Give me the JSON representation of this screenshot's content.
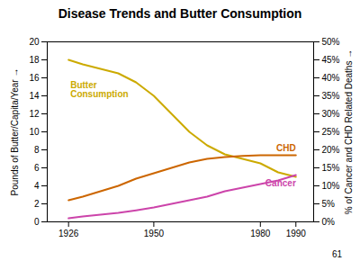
{
  "chart_data": {
    "type": "line",
    "title": "Disease Trends and Butter Consumption",
    "x": [
      1926,
      1930,
      1935,
      1940,
      1945,
      1950,
      1955,
      1960,
      1965,
      1970,
      1975,
      1980,
      1985,
      1990
    ],
    "xlim": [
      1920,
      1995
    ],
    "xticks": [
      1926,
      1950,
      1980,
      1990
    ],
    "ylabel": "Pounds of Butter/Capita/Year",
    "ylim": [
      0,
      20
    ],
    "yticks": [
      0,
      2,
      4,
      6,
      8,
      10,
      12,
      14,
      16,
      18,
      20
    ],
    "y2label": "% of Cancer and CHD Related Deaths",
    "y2lim": [
      0,
      50
    ],
    "y2ticks": [
      {
        "value": 0,
        "label": "0%"
      },
      {
        "value": 5,
        "label": "5%"
      },
      {
        "value": 10,
        "label": "10%"
      },
      {
        "value": 15,
        "label": "15%"
      },
      {
        "value": 20,
        "label": "20%"
      },
      {
        "value": 25,
        "label": "25%"
      },
      {
        "value": 30,
        "label": "30%"
      },
      {
        "value": 35,
        "label": "35%"
      },
      {
        "value": 40,
        "label": "40%"
      },
      {
        "value": 45,
        "label": "45%"
      },
      {
        "value": 50,
        "label": "50%"
      }
    ],
    "grid": false,
    "series": [
      {
        "name": "Butter\nConsumption",
        "color": "#ccaa00",
        "values": [
          18.0,
          17.5,
          17.0,
          16.5,
          15.5,
          14.0,
          12.0,
          10.0,
          8.5,
          7.5,
          7.0,
          6.5,
          5.5,
          5.0
        ]
      },
      {
        "name": "CHD",
        "color": "#cc6600",
        "axis": "y2",
        "values": [
          6.0,
          7.0,
          8.5,
          10.0,
          12.0,
          13.5,
          15.0,
          16.5,
          17.5,
          18.0,
          18.3,
          18.5,
          18.5,
          18.5
        ]
      },
      {
        "name": "Cancer",
        "color": "#cc44aa",
        "axis": "y2",
        "values": [
          1.0,
          1.5,
          2.0,
          2.5,
          3.2,
          4.0,
          5.0,
          6.0,
          7.0,
          8.5,
          9.5,
          10.5,
          11.5,
          13.0
        ]
      }
    ],
    "caption": "61"
  }
}
